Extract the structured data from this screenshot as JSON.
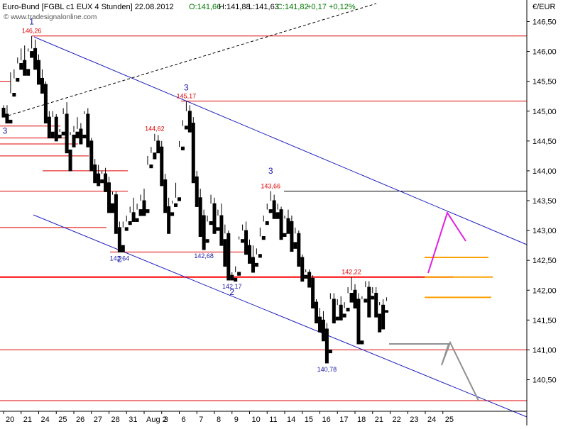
{
  "chart_data": {
    "type": "candlestick",
    "header": {
      "instrument": "Euro-Bund [FGBL c1 EUX  4 Stunden] 22.08.2012",
      "open": "O:141,66",
      "high": "H:141,88",
      "low": "L:141,63",
      "close": "C:141,82",
      "change": "+0,17",
      "change_pct": "+0,12%",
      "watermark": "© www.tradesignalonline.com"
    },
    "unit": "€/EUR",
    "ylim": [
      140.0,
      146.75
    ],
    "y_ticks": [
      "146,50",
      "146,00",
      "145,50",
      "145,00",
      "144,50",
      "144,00",
      "143,50",
      "143,00",
      "142,50",
      "142,00",
      "141,50",
      "141,00",
      "140,50"
    ],
    "y_tick_values": [
      146.5,
      146.0,
      145.5,
      145.0,
      144.5,
      144.0,
      143.5,
      143.0,
      142.5,
      142.0,
      141.5,
      141.0,
      140.5
    ],
    "x_labels": [
      "20",
      "21",
      "24",
      "25",
      "26",
      "27",
      "28",
      "31",
      "Aug 2",
      "3",
      "6",
      "7",
      "8",
      "9",
      "10",
      "11",
      "14",
      "15",
      "16",
      "17",
      "18",
      "21",
      "22",
      "23",
      "24",
      "25"
    ],
    "x_label_bar": [
      0,
      5,
      10,
      15,
      20,
      25,
      30,
      35,
      40,
      45,
      50,
      55,
      60,
      65,
      70,
      75,
      80,
      85,
      90,
      95,
      100,
      105,
      110,
      115,
      120,
      125
    ],
    "bar_count": 130,
    "candles": [
      [
        145.05,
        145.1,
        144.95,
        144.9
      ],
      [
        144.95,
        145.1,
        144.85,
        144.8
      ],
      [
        144.85,
        145.65,
        145.3,
        144.8
      ],
      [
        145.3,
        145.7,
        145.55,
        145.25
      ],
      [
        145.55,
        145.9,
        145.8,
        145.5
      ],
      [
        145.8,
        146.05,
        145.85,
        145.7
      ],
      [
        145.85,
        146.1,
        145.7,
        145.6
      ],
      [
        145.7,
        146.05,
        146.0,
        145.6
      ],
      [
        146.0,
        146.26,
        146.05,
        145.9
      ],
      [
        146.05,
        146.2,
        145.85,
        145.7
      ],
      [
        145.85,
        145.95,
        145.55,
        145.45
      ],
      [
        145.55,
        145.7,
        145.45,
        145.3
      ],
      [
        145.45,
        145.5,
        144.9,
        144.8
      ],
      [
        144.9,
        145.0,
        144.65,
        144.55
      ],
      [
        144.65,
        145.0,
        144.9,
        144.55
      ],
      [
        144.9,
        144.95,
        144.6,
        144.5
      ],
      [
        144.6,
        144.7,
        144.65,
        144.55
      ],
      [
        144.65,
        145.05,
        144.95,
        144.6
      ],
      [
        144.95,
        145.15,
        144.35,
        144.3
      ],
      [
        144.35,
        144.65,
        144.6,
        144.0
      ],
      [
        144.6,
        144.75,
        144.65,
        144.4
      ],
      [
        144.65,
        144.9,
        144.7,
        144.55
      ],
      [
        144.7,
        144.8,
        144.6,
        144.45
      ],
      [
        144.6,
        145.0,
        144.95,
        144.55
      ],
      [
        144.95,
        145.05,
        144.5,
        144.4
      ],
      [
        144.5,
        144.55,
        144.1,
        144.0
      ],
      [
        144.1,
        144.2,
        143.95,
        143.8
      ],
      [
        143.95,
        144.1,
        143.85,
        143.75
      ],
      [
        143.85,
        144.0,
        143.95,
        143.8
      ],
      [
        143.95,
        144.05,
        143.8,
        143.65
      ],
      [
        143.8,
        143.9,
        143.45,
        143.3
      ],
      [
        143.45,
        143.65,
        143.6,
        143.3
      ],
      [
        143.6,
        143.65,
        143.05,
        142.95
      ],
      [
        143.05,
        143.15,
        142.75,
        142.64
      ],
      [
        142.75,
        143.15,
        143.05,
        142.64
      ],
      [
        143.05,
        143.25,
        143.15,
        143.0
      ],
      [
        143.15,
        143.4,
        143.3,
        143.1
      ],
      [
        143.3,
        143.55,
        143.2,
        143.15
      ],
      [
        143.2,
        143.45,
        143.35,
        143.15
      ],
      [
        143.35,
        143.6,
        143.5,
        143.25
      ],
      [
        143.5,
        143.7,
        143.35,
        143.25
      ],
      [
        143.35,
        144.25,
        144.1,
        143.3
      ],
      [
        144.1,
        144.4,
        144.3,
        144.05
      ],
      [
        144.3,
        144.62,
        144.5,
        144.2
      ],
      [
        144.5,
        144.6,
        144.4,
        144.3
      ],
      [
        144.4,
        144.5,
        143.85,
        143.75
      ],
      [
        143.85,
        143.95,
        143.4,
        143.3
      ],
      [
        143.4,
        143.55,
        143.3,
        142.95
      ],
      [
        143.3,
        143.5,
        143.45,
        143.25
      ],
      [
        143.45,
        143.8,
        143.55,
        143.4
      ],
      [
        143.55,
        144.5,
        144.4,
        143.5
      ],
      [
        144.4,
        144.85,
        144.75,
        144.35
      ],
      [
        144.75,
        145.17,
        145.0,
        144.7
      ],
      [
        145.0,
        145.1,
        144.8,
        144.65
      ],
      [
        144.8,
        144.9,
        143.9,
        143.8
      ],
      [
        143.9,
        144.0,
        143.55,
        143.4
      ],
      [
        143.55,
        143.7,
        143.25,
        142.9
      ],
      [
        143.25,
        143.35,
        142.85,
        142.68
      ],
      [
        142.85,
        143.25,
        143.15,
        142.8
      ],
      [
        143.15,
        143.6,
        143.45,
        143.1
      ],
      [
        143.45,
        143.55,
        143.05,
        142.95
      ],
      [
        143.05,
        143.35,
        143.25,
        143.0
      ],
      [
        143.25,
        143.45,
        142.85,
        142.75
      ],
      [
        142.85,
        143.1,
        142.95,
        142.4
      ],
      [
        142.95,
        143.0,
        142.25,
        142.17
      ],
      [
        142.25,
        142.3,
        142.2,
        142.17
      ],
      [
        142.2,
        142.4,
        142.3,
        142.15
      ],
      [
        142.3,
        142.9,
        142.85,
        142.25
      ],
      [
        142.85,
        143.1,
        143.0,
        142.8
      ],
      [
        143.0,
        143.15,
        142.75,
        142.6
      ],
      [
        142.75,
        142.85,
        142.55,
        142.45
      ],
      [
        142.55,
        142.75,
        142.45,
        142.3
      ],
      [
        142.45,
        142.7,
        142.6,
        142.4
      ],
      [
        142.6,
        143.05,
        142.9,
        142.55
      ],
      [
        142.9,
        143.25,
        143.15,
        142.85
      ],
      [
        143.15,
        143.45,
        143.35,
        143.1
      ],
      [
        143.35,
        143.66,
        143.5,
        143.3
      ],
      [
        143.5,
        143.6,
        143.3,
        143.2
      ],
      [
        143.3,
        143.45,
        143.35,
        143.2
      ],
      [
        143.35,
        143.4,
        142.95,
        142.85
      ],
      [
        142.95,
        143.25,
        143.2,
        142.9
      ],
      [
        143.2,
        143.35,
        143.15,
        142.95
      ],
      [
        143.15,
        143.25,
        142.8,
        142.65
      ],
      [
        142.8,
        143.05,
        142.95,
        142.7
      ],
      [
        142.95,
        143.0,
        142.55,
        142.4
      ],
      [
        142.55,
        142.6,
        142.25,
        142.15
      ],
      [
        142.25,
        142.35,
        142.3,
        142.2
      ],
      [
        142.3,
        142.35,
        142.2,
        142.05
      ],
      [
        142.2,
        142.25,
        141.8,
        141.7
      ],
      [
        141.8,
        141.85,
        141.55,
        141.45
      ],
      [
        141.55,
        141.7,
        141.5,
        141.3
      ],
      [
        141.5,
        141.65,
        141.35,
        141.15
      ],
      [
        141.35,
        141.45,
        141.0,
        140.78
      ],
      [
        141.0,
        141.95,
        141.85,
        140.95
      ],
      [
        141.85,
        141.95,
        141.55,
        141.45
      ],
      [
        141.55,
        141.85,
        141.75,
        141.5
      ],
      [
        141.75,
        141.9,
        141.6,
        141.5
      ],
      [
        141.6,
        141.8,
        141.7,
        141.55
      ],
      [
        141.7,
        142.05,
        141.95,
        141.65
      ],
      [
        141.95,
        142.22,
        142.0,
        141.8
      ],
      [
        142.0,
        142.1,
        141.85,
        141.7
      ],
      [
        141.85,
        141.95,
        141.15,
        141.1
      ],
      [
        141.15,
        141.9,
        141.85,
        141.1
      ],
      [
        141.85,
        142.15,
        142.05,
        141.8
      ],
      [
        142.05,
        142.15,
        141.9,
        141.55
      ],
      [
        141.9,
        142.05,
        141.95,
        141.85
      ],
      [
        141.95,
        142.05,
        141.6,
        141.55
      ],
      [
        141.6,
        141.8,
        141.75,
        141.3
      ],
      [
        141.75,
        141.85,
        141.65,
        141.35
      ],
      [
        141.66,
        141.88,
        141.82,
        141.63
      ]
    ],
    "resistance_lines": [
      146.26,
      145.17,
      143.66,
      142.22,
      142.64,
      142.68,
      142.17,
      141.0,
      140.15
    ],
    "annotations": {
      "price_labels": [
        {
          "text": "146,26",
          "color": "red",
          "bar": 8,
          "price": 146.26,
          "pos": "above"
        },
        {
          "text": "145,17",
          "color": "red",
          "bar": 52,
          "price": 145.17,
          "pos": "above"
        },
        {
          "text": "144,62",
          "color": "red",
          "bar": 43,
          "price": 144.62,
          "pos": "above"
        },
        {
          "text": "143,66",
          "color": "red",
          "bar": 76,
          "price": 143.66,
          "pos": "above"
        },
        {
          "text": "142,22",
          "color": "red",
          "bar": 99,
          "price": 142.22,
          "pos": "above"
        },
        {
          "text": "142,64",
          "color": "blue",
          "bar": 33,
          "price": 142.64,
          "pos": "below"
        },
        {
          "text": "142,68",
          "color": "blue",
          "bar": 57,
          "price": 142.68,
          "pos": "below"
        },
        {
          "text": "142,17",
          "color": "blue",
          "bar": 65,
          "price": 142.17,
          "pos": "below"
        },
        {
          "text": "140,78",
          "color": "blue",
          "bar": 92,
          "price": 140.78,
          "pos": "below"
        }
      ],
      "wave_labels": [
        {
          "text": "1",
          "bar": 8,
          "price": 146.45
        },
        {
          "text": "3",
          "bar": 0,
          "price": 144.62
        },
        {
          "text": "2",
          "bar": 33,
          "price": 142.47
        },
        {
          "text": "3",
          "bar": 52,
          "price": 145.35
        },
        {
          "text": "2",
          "bar": 65,
          "price": 141.92
        },
        {
          "text": "3",
          "bar": 76,
          "price": 143.95
        }
      ]
    },
    "colors": {
      "up": "#ffffff",
      "down": "#000000",
      "channel": "#2020c0",
      "support": "#e00000",
      "key_level": "#ff0000",
      "target": "#ffa000",
      "projection_up": "#e020e0",
      "projection_down": "#909090",
      "trendline": "#000000"
    },
    "grid": false,
    "legend": "none"
  }
}
